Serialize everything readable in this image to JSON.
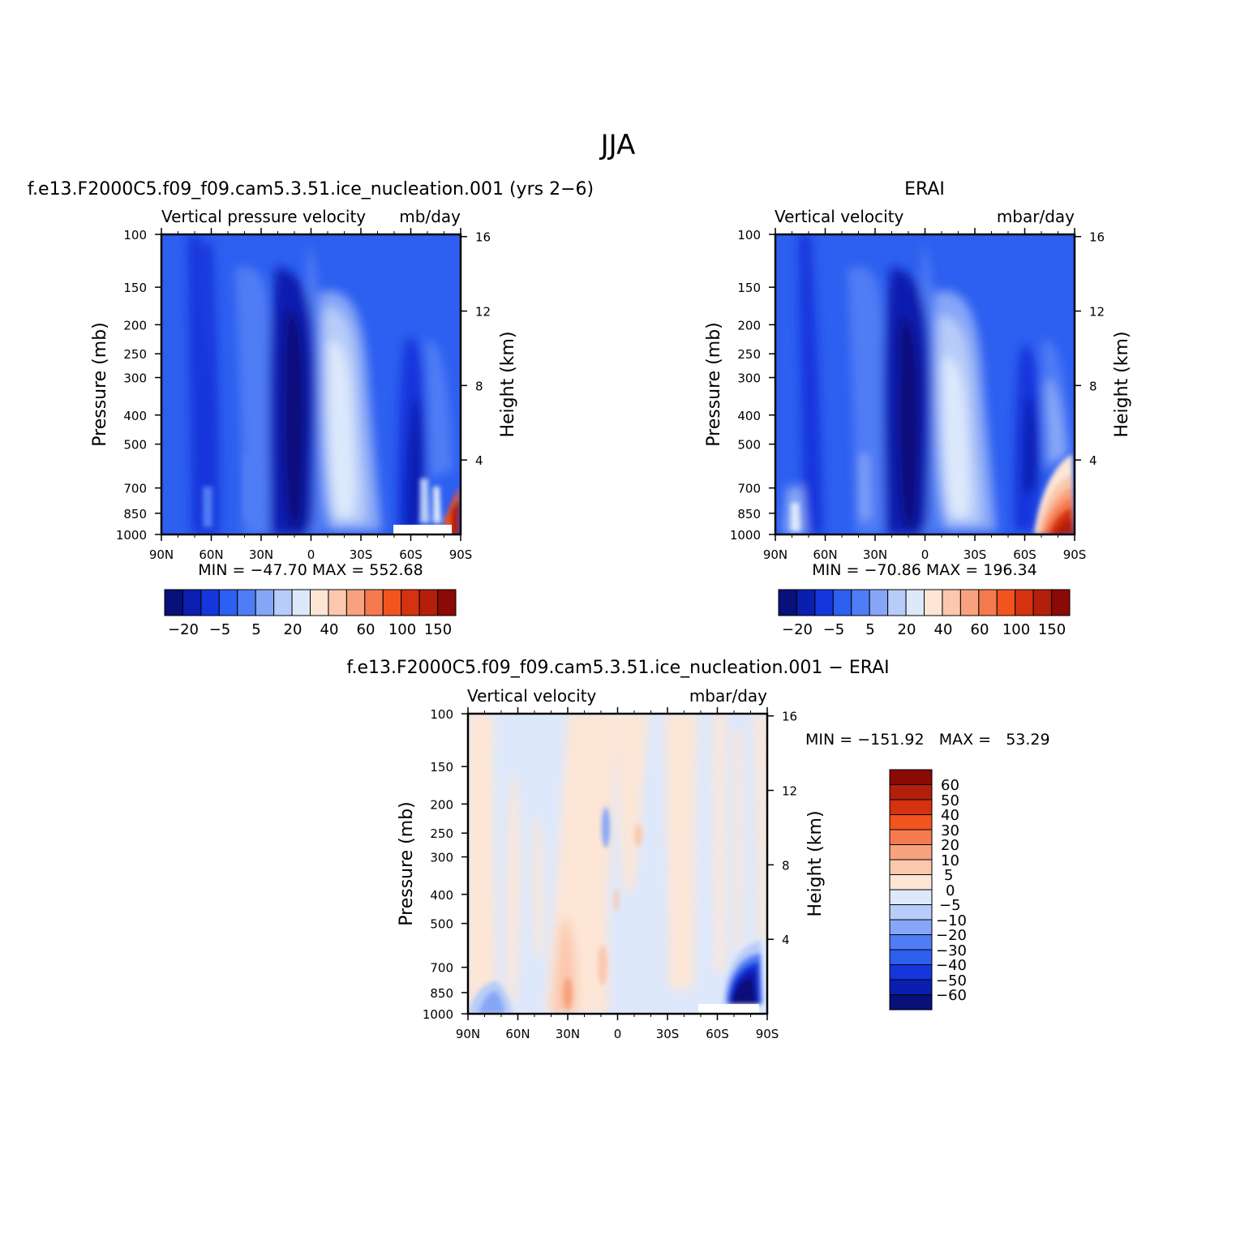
{
  "page": {
    "main_title": "JJA"
  },
  "panels": [
    {
      "id": "model",
      "title": "f.e13.F2000C5.f09_f09.cam5.3.51.ice_nucleation.001 (yrs 2−6)",
      "left_label": "Vertical pressure velocity",
      "right_label": "mb/day",
      "ylabel": "Pressure (mb)",
      "y2label": "Height (km)",
      "minmax": "MIN = −47.70   MAX = 552.68"
    },
    {
      "id": "erai",
      "title": "ERAI",
      "left_label": "Vertical velocity",
      "right_label": "mbar/day",
      "ylabel": "Pressure (mb)",
      "y2label": "Height (km)",
      "minmax": "MIN = −70.86   MAX = 196.34"
    },
    {
      "id": "diff",
      "title": "f.e13.F2000C5.f09_f09.cam5.3.51.ice_nucleation.001 − ERAI",
      "left_label": "Vertical velocity",
      "right_label": "mbar/day",
      "ylabel": "Pressure (mb)",
      "y2label": "Height (km)",
      "minmax": "MIN = −151.92   MAX =   53.29"
    }
  ],
  "chart_data": [
    {
      "type": "heatmap",
      "title": "f.e13.F2000C5.f09_f09.cam5.3.51.ice_nucleation.001 (yrs 2−6)",
      "xlabel": "",
      "ylabel": "Pressure (mb)",
      "y2label": "Height (km)",
      "x_ticks": [
        "90N",
        "60N",
        "30N",
        "0",
        "30S",
        "60S",
        "90S"
      ],
      "x_range": [
        90,
        -90
      ],
      "y_ticks": [
        100,
        150,
        200,
        250,
        300,
        400,
        500,
        700,
        850,
        1000
      ],
      "y_range": [
        100,
        1000
      ],
      "y_scale": "log",
      "y2_ticks": [
        16,
        12,
        8,
        4
      ],
      "min": -47.7,
      "max": 552.68,
      "units": "mb/day",
      "colorbar_levels": [
        -20,
        -5,
        5,
        20,
        40,
        60,
        100,
        150
      ]
    },
    {
      "type": "heatmap",
      "title": "ERAI",
      "xlabel": "",
      "ylabel": "Pressure (mb)",
      "y2label": "Height (km)",
      "x_ticks": [
        "90N",
        "60N",
        "30N",
        "0",
        "30S",
        "60S",
        "90S"
      ],
      "x_range": [
        90,
        -90
      ],
      "y_ticks": [
        100,
        150,
        200,
        250,
        300,
        400,
        500,
        700,
        850,
        1000
      ],
      "y_range": [
        100,
        1000
      ],
      "y_scale": "log",
      "y2_ticks": [
        16,
        12,
        8,
        4
      ],
      "min": -70.86,
      "max": 196.34,
      "units": "mbar/day",
      "colorbar_levels": [
        -20,
        -5,
        5,
        20,
        40,
        60,
        100,
        150
      ]
    },
    {
      "type": "heatmap",
      "title": "f.e13.F2000C5.f09_f09.cam5.3.51.ice_nucleation.001 − ERAI",
      "xlabel": "",
      "ylabel": "Pressure (mb)",
      "y2label": "Height (km)",
      "x_ticks": [
        "90N",
        "60N",
        "30N",
        "0",
        "30S",
        "60S",
        "90S"
      ],
      "x_range": [
        90,
        -90
      ],
      "y_ticks": [
        100,
        150,
        200,
        250,
        300,
        400,
        500,
        700,
        850,
        1000
      ],
      "y_range": [
        100,
        1000
      ],
      "y_scale": "log",
      "y2_ticks": [
        16,
        12,
        8,
        4
      ],
      "min": -151.92,
      "max": 53.29,
      "units": "mbar/day",
      "colorbar_levels": [
        60,
        50,
        40,
        30,
        20,
        10,
        5,
        0,
        -5,
        -10,
        -20,
        -30,
        -40,
        -50,
        -60
      ]
    }
  ],
  "colors": {
    "abs_palette": [
      "#08107a",
      "#0a1fb0",
      "#1536dc",
      "#2d5ff0",
      "#4f7df5",
      "#86a6f7",
      "#b7ccf8",
      "#dde8fb",
      "#fde6d6",
      "#fbc8ae",
      "#f8a27f",
      "#f57a50",
      "#f2541f",
      "#d53210",
      "#b41f0b",
      "#8a0a05"
    ],
    "diff_palette": [
      "#8a0a05",
      "#b41f0b",
      "#d53210",
      "#f2541f",
      "#f57a50",
      "#f8a27f",
      "#fbc8ae",
      "#fde6d6",
      "#dde8fb",
      "#b7ccf8",
      "#86a6f7",
      "#4f7df5",
      "#2d5ff0",
      "#1536dc",
      "#0a1fb0",
      "#08107a"
    ]
  }
}
